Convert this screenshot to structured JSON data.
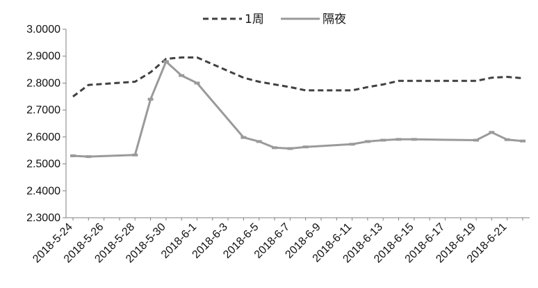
{
  "chart_data": {
    "type": "line",
    "title": "",
    "xlabel": "",
    "ylabel": "",
    "ylim": [
      2.3,
      3.0
    ],
    "yticks": [
      "3.0000",
      "2.9000",
      "2.8000",
      "2.7000",
      "2.6000",
      "2.5000",
      "2.4000",
      "2.3000"
    ],
    "ytick_values": [
      3.0,
      2.9,
      2.8,
      2.7,
      2.6,
      2.5,
      2.4,
      2.3
    ],
    "xtick_labels": [
      "2018-5-24",
      "2018-5-26",
      "2018-5-28",
      "2018-5-30",
      "2018-6-1",
      "2018-6-3",
      "2018-6-5",
      "2018-6-7",
      "2018-6-9",
      "2018-6-11",
      "2018-6-13",
      "2018-6-15",
      "2018-6-17",
      "2018-6-19",
      "2018-6-21"
    ],
    "x_start": "2018-5-24",
    "x_end": "2018-6-22",
    "grid": false,
    "legend": {
      "position": "top"
    },
    "series": [
      {
        "name": "1周",
        "style": "dashed",
        "color": "#404040",
        "points": [
          [
            "2018-5-24",
            2.75
          ],
          [
            "2018-5-25",
            2.793
          ],
          [
            "2018-5-28",
            2.805
          ],
          [
            "2018-5-29",
            2.84
          ],
          [
            "2018-5-30",
            2.89
          ],
          [
            "2018-5-31",
            2.895
          ],
          [
            "2018-6-1",
            2.895
          ],
          [
            "2018-6-4",
            2.82
          ],
          [
            "2018-6-5",
            2.805
          ],
          [
            "2018-6-6",
            2.795
          ],
          [
            "2018-6-7",
            2.785
          ],
          [
            "2018-6-8",
            2.773
          ],
          [
            "2018-6-11",
            2.773
          ],
          [
            "2018-6-12",
            2.785
          ],
          [
            "2018-6-13",
            2.795
          ],
          [
            "2018-6-14",
            2.808
          ],
          [
            "2018-6-15",
            2.808
          ],
          [
            "2018-6-19",
            2.808
          ],
          [
            "2018-6-20",
            2.82
          ],
          [
            "2018-6-21",
            2.823
          ],
          [
            "2018-6-22",
            2.818
          ]
        ]
      },
      {
        "name": "隔夜",
        "style": "solid",
        "color": "#9a9a9a",
        "points": [
          [
            "2018-5-24",
            2.53
          ],
          [
            "2018-5-25",
            2.527
          ],
          [
            "2018-5-28",
            2.533
          ],
          [
            "2018-5-29",
            2.74
          ],
          [
            "2018-5-30",
            2.88
          ],
          [
            "2018-5-31",
            2.828
          ],
          [
            "2018-6-1",
            2.8
          ],
          [
            "2018-6-4",
            2.598
          ],
          [
            "2018-6-5",
            2.583
          ],
          [
            "2018-6-6",
            2.56
          ],
          [
            "2018-6-7",
            2.557
          ],
          [
            "2018-6-8",
            2.563
          ],
          [
            "2018-6-11",
            2.573
          ],
          [
            "2018-6-12",
            2.583
          ],
          [
            "2018-6-13",
            2.588
          ],
          [
            "2018-6-14",
            2.591
          ],
          [
            "2018-6-15",
            2.591
          ],
          [
            "2018-6-19",
            2.588
          ],
          [
            "2018-6-20",
            2.617
          ],
          [
            "2018-6-21",
            2.59
          ],
          [
            "2018-6-22",
            2.585
          ]
        ]
      }
    ]
  }
}
